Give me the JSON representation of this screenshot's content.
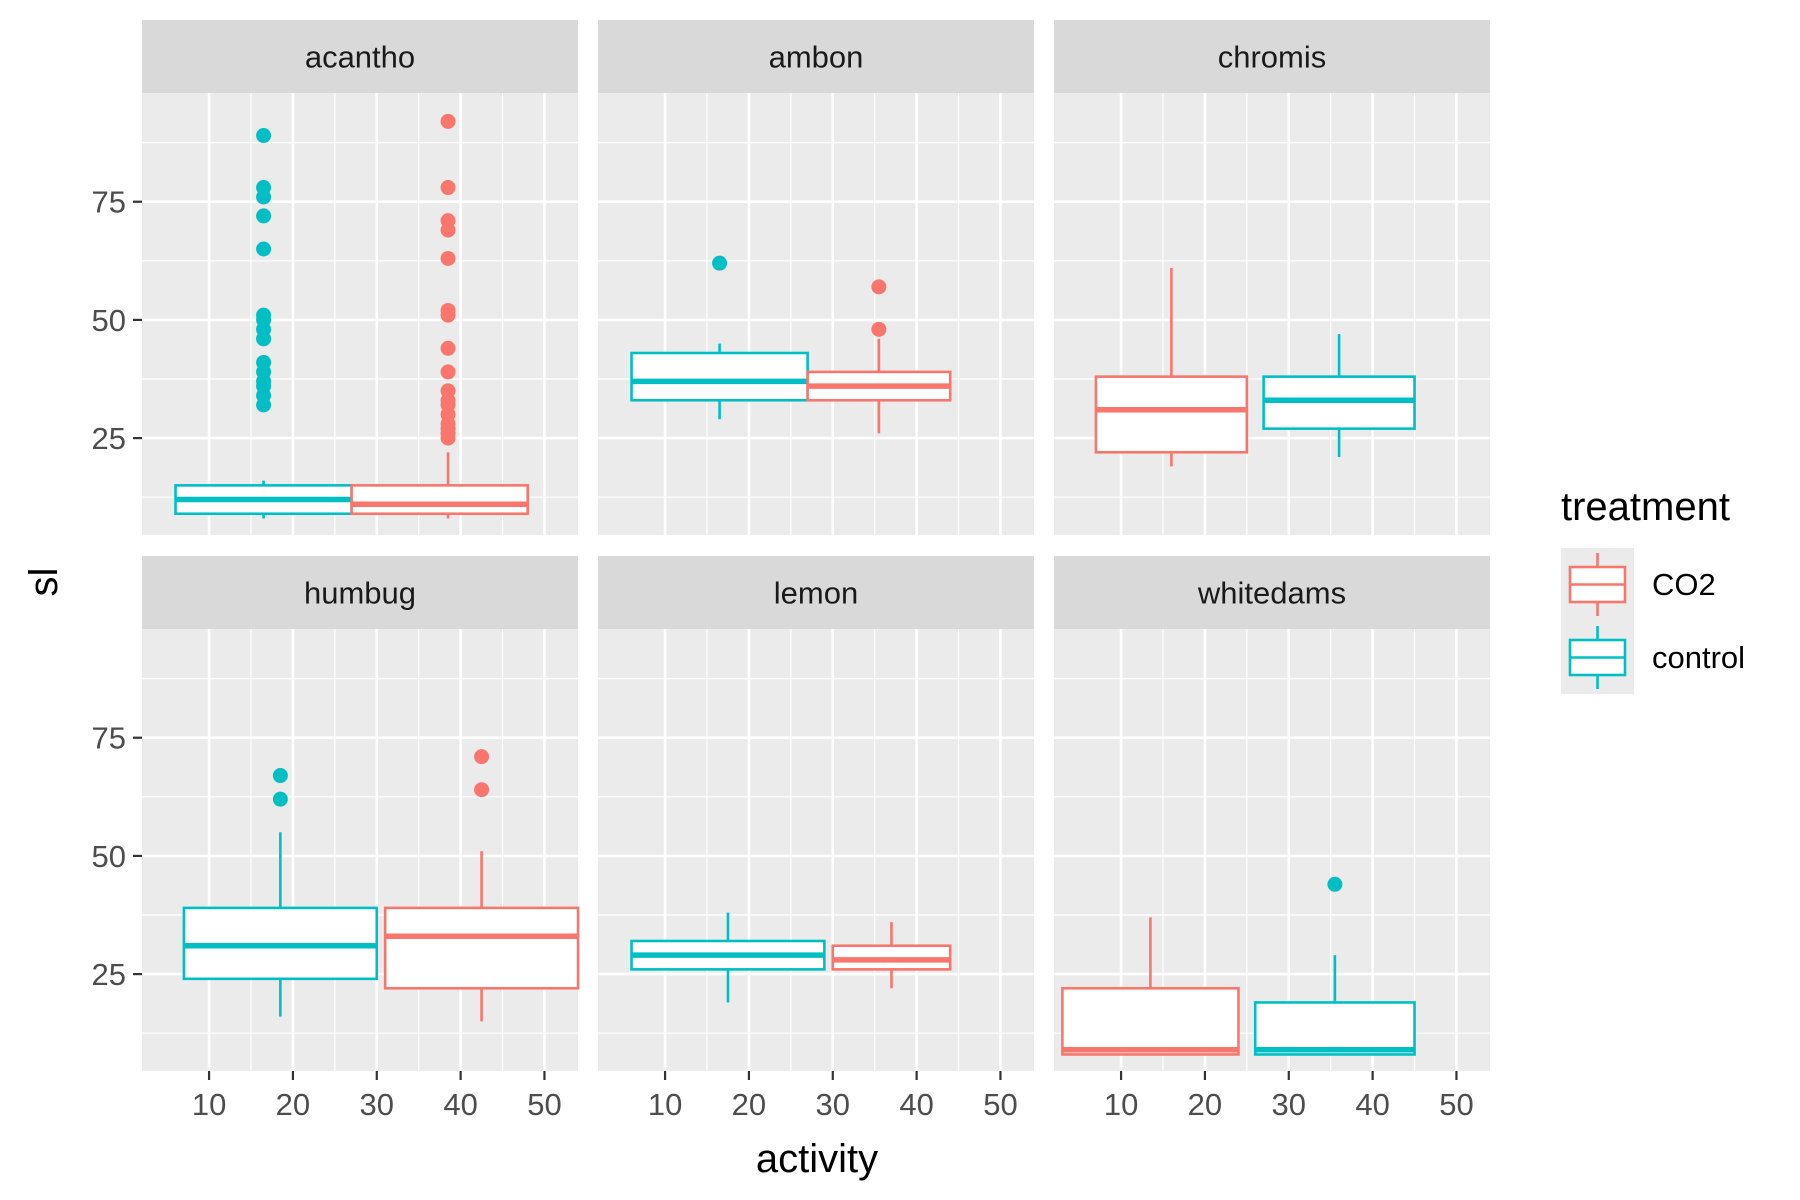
{
  "chart_data": {
    "type": "box",
    "xlabel": "activity",
    "ylabel": "sl",
    "xlim": [
      2,
      54
    ],
    "ylim": [
      4.5,
      98
    ],
    "x_ticks": [
      10,
      20,
      30,
      40,
      50
    ],
    "y_ticks": [
      25,
      50,
      75
    ],
    "grid": true,
    "legend": {
      "title": "treatment",
      "position": "right",
      "entries": [
        {
          "name": "CO2",
          "color": "#F8766D"
        },
        {
          "name": "control",
          "color": "#00BFC4"
        }
      ]
    },
    "panels": [
      {
        "name": "acantho",
        "boxes": [
          {
            "series": "control",
            "xmin": 6,
            "xmax": 27,
            "x": 16.5,
            "lower_whisker": 8,
            "q1": 9,
            "median": 12,
            "q3": 15,
            "upper_whisker": 16,
            "outliers": [
              32,
              34,
              36,
              37,
              39,
              41,
              46,
              48,
              50,
              51,
              65,
              72,
              76,
              78,
              89
            ]
          },
          {
            "series": "CO2",
            "xmin": 27,
            "xmax": 48,
            "x": 38.5,
            "lower_whisker": 8,
            "q1": 9,
            "median": 11,
            "q3": 15,
            "upper_whisker": 22,
            "outliers": [
              25,
              26,
              27,
              28,
              30,
              32,
              33,
              35,
              39,
              44,
              51,
              52,
              63,
              69,
              71,
              78,
              92
            ]
          }
        ]
      },
      {
        "name": "ambon",
        "boxes": [
          {
            "series": "control",
            "xmin": 6,
            "xmax": 27,
            "x": 16.5,
            "lower_whisker": 29,
            "q1": 33,
            "median": 37,
            "q3": 43,
            "upper_whisker": 45,
            "outliers": [
              62
            ]
          },
          {
            "series": "CO2",
            "xmin": 27,
            "xmax": 44,
            "x": 35.5,
            "lower_whisker": 26,
            "q1": 33,
            "median": 36,
            "q3": 39,
            "upper_whisker": 46,
            "outliers": [
              48,
              57
            ]
          }
        ]
      },
      {
        "name": "chromis",
        "boxes": [
          {
            "series": "CO2",
            "xmin": 7,
            "xmax": 25,
            "x": 16,
            "lower_whisker": 19,
            "q1": 22,
            "median": 31,
            "q3": 38,
            "upper_whisker": 61,
            "outliers": []
          },
          {
            "series": "control",
            "xmin": 27,
            "xmax": 45,
            "x": 36,
            "lower_whisker": 21,
            "q1": 27,
            "median": 33,
            "q3": 38,
            "upper_whisker": 47,
            "outliers": []
          }
        ]
      },
      {
        "name": "humbug",
        "boxes": [
          {
            "series": "control",
            "xmin": 7,
            "xmax": 30,
            "x": 18.5,
            "lower_whisker": 16,
            "q1": 24,
            "median": 31,
            "q3": 39,
            "upper_whisker": 55,
            "outliers": [
              62,
              67
            ]
          },
          {
            "series": "CO2",
            "xmin": 31,
            "xmax": 54,
            "x": 42.5,
            "lower_whisker": 15,
            "q1": 22,
            "median": 33,
            "q3": 39,
            "upper_whisker": 51,
            "outliers": [
              64,
              71
            ]
          }
        ]
      },
      {
        "name": "lemon",
        "boxes": [
          {
            "series": "control",
            "xmin": 6,
            "xmax": 29,
            "x": 17.5,
            "lower_whisker": 19,
            "q1": 26,
            "median": 29,
            "q3": 32,
            "upper_whisker": 38,
            "outliers": []
          },
          {
            "series": "CO2",
            "xmin": 30,
            "xmax": 44,
            "x": 37,
            "lower_whisker": 22,
            "q1": 26,
            "median": 28,
            "q3": 31,
            "upper_whisker": 36,
            "outliers": []
          }
        ]
      },
      {
        "name": "whitedams",
        "boxes": [
          {
            "series": "CO2",
            "xmin": 3,
            "xmax": 24,
            "x": 13.5,
            "lower_whisker": 8,
            "q1": 8,
            "median": 9,
            "q3": 22,
            "upper_whisker": 37,
            "outliers": []
          },
          {
            "series": "control",
            "xmin": 26,
            "xmax": 45,
            "x": 35.5,
            "lower_whisker": 8,
            "q1": 8,
            "median": 9,
            "q3": 19,
            "upper_whisker": 29,
            "outliers": [
              44
            ]
          }
        ]
      }
    ]
  }
}
